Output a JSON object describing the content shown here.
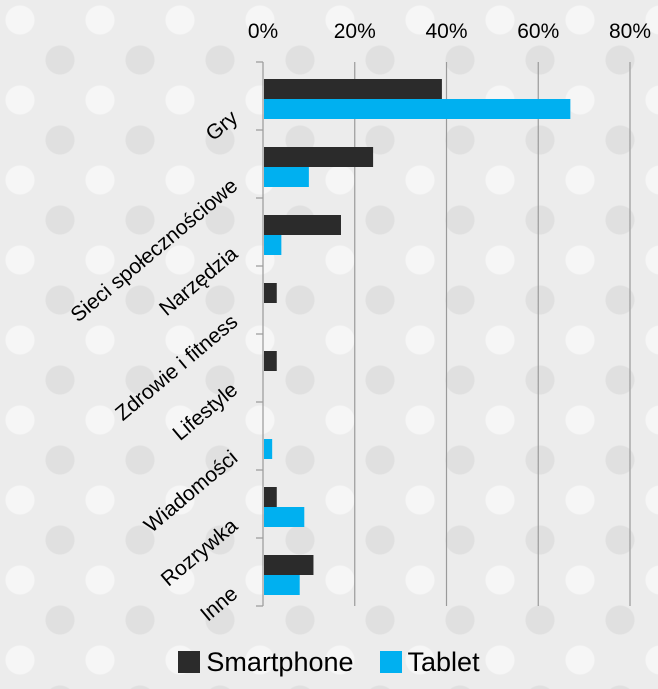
{
  "colors": {
    "smartphone": "#2b2b2b",
    "tablet": "#00b0f0"
  },
  "chart_data": {
    "type": "bar",
    "orientation": "horizontal",
    "categories": [
      "Gry",
      "Sieci społecznościowe",
      "Narzędzia",
      "Zdrowie i fitness",
      "Lifestyle",
      "Wiadomości",
      "Rozrywka",
      "Inne"
    ],
    "series": [
      {
        "name": "Smartphone",
        "values": [
          39,
          24,
          17,
          3,
          3,
          0,
          3,
          11
        ]
      },
      {
        "name": "Tablet",
        "values": [
          67,
          10,
          4,
          0,
          0,
          2,
          9,
          8
        ]
      }
    ],
    "xticks": [
      "0%",
      "20%",
      "40%",
      "60%",
      "80%"
    ],
    "xlim": [
      0,
      80
    ],
    "x_axis_position": "top",
    "grid": true,
    "legend_position": "bottom"
  }
}
